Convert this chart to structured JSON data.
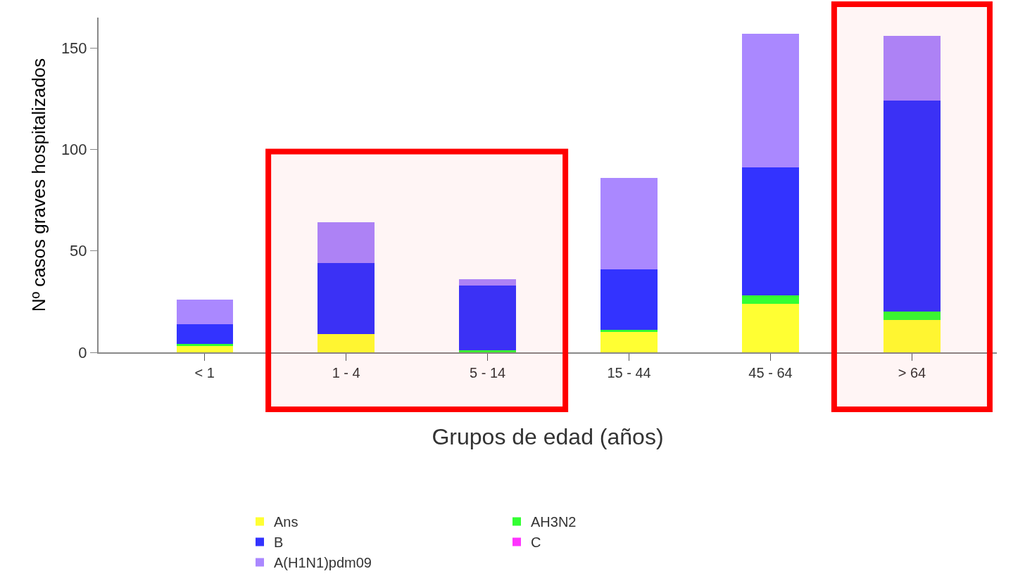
{
  "chart_data": {
    "type": "bar",
    "stacked": true,
    "xlabel": "Grupos de edad (años)",
    "ylabel": "Nº casos graves hospitalizados",
    "categories": [
      "< 1",
      "1 - 4",
      "5 - 14",
      "15 - 44",
      "45 - 64",
      "> 64"
    ],
    "series": [
      {
        "name": "Ans",
        "color": "#ffff33",
        "values": [
          3,
          9,
          0,
          10,
          24,
          16
        ]
      },
      {
        "name": "AH3N2",
        "color": "#33ff33",
        "values": [
          1,
          0,
          1,
          1,
          4,
          4
        ]
      },
      {
        "name": "B",
        "color": "#3333ff",
        "values": [
          10,
          35,
          32,
          30,
          63,
          104
        ]
      },
      {
        "name": "C",
        "color": "#ff33ff",
        "values": [
          0,
          0,
          0,
          0,
          0,
          0
        ]
      },
      {
        "name": "A(H1N1)pdm09",
        "color": "#aa88ff",
        "values": [
          12,
          20,
          3,
          45,
          66,
          32
        ]
      }
    ],
    "ylim": [
      0,
      165
    ],
    "yticks": [
      0,
      50,
      100,
      150
    ],
    "legend": "bottom",
    "bands": [
      {
        "axis": "x",
        "from": "1 - 4",
        "to": "5 - 14",
        "color": "#ff0000"
      },
      {
        "axis": "x",
        "from": "> 64",
        "to": "> 64",
        "color": "#ff0000"
      }
    ]
  }
}
